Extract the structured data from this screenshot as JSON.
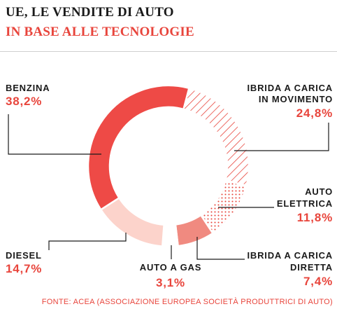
{
  "header": {
    "title": "UE, LE VENDITE DI AUTO",
    "subtitle": "IN BASE ALLE TECNOLOGIE"
  },
  "colors": {
    "accent": "#e8453c",
    "benzina": "#ee4a46",
    "hybrid_stripes": "#e8453c",
    "elettrica_dots": "#e8453c",
    "ibrida_diretta": "#f08a80",
    "diesel": "#fcd3cb",
    "gas": "#ffffff"
  },
  "chart_data": {
    "type": "donut",
    "unit": "%",
    "slices": [
      {
        "id": "ibrida-movimento",
        "label_lines": [
          "IBRIDA A CARICA",
          "IN MOVIMENTO"
        ],
        "value": 24.8,
        "value_label": "24,8%",
        "fill": "stripes"
      },
      {
        "id": "elettrica",
        "label_lines": [
          "AUTO",
          "ELETTRICA"
        ],
        "value": 11.8,
        "value_label": "11,8%",
        "fill": "dots"
      },
      {
        "id": "ibrida-diretta",
        "label_lines": [
          "IBRIDA A CARICA",
          "DIRETTA"
        ],
        "value": 7.4,
        "value_label": "7,4%",
        "fill": "solid"
      },
      {
        "id": "gas",
        "label_lines": [
          "AUTO A GAS"
        ],
        "value": 3.1,
        "value_label": "3,1%",
        "fill": "white"
      },
      {
        "id": "diesel",
        "label_lines": [
          "DIESEL"
        ],
        "value": 14.7,
        "value_label": "14,7%",
        "fill": "solid"
      },
      {
        "id": "benzina",
        "label_lines": [
          "BENZINA"
        ],
        "value": 38.2,
        "value_label": "38,2%",
        "fill": "solid"
      }
    ]
  },
  "source": "FONTE: ACEA  (ASSOCIAZIONE EUROPEA SOCIETÀ PRODUTTRICI DI AUTO)"
}
